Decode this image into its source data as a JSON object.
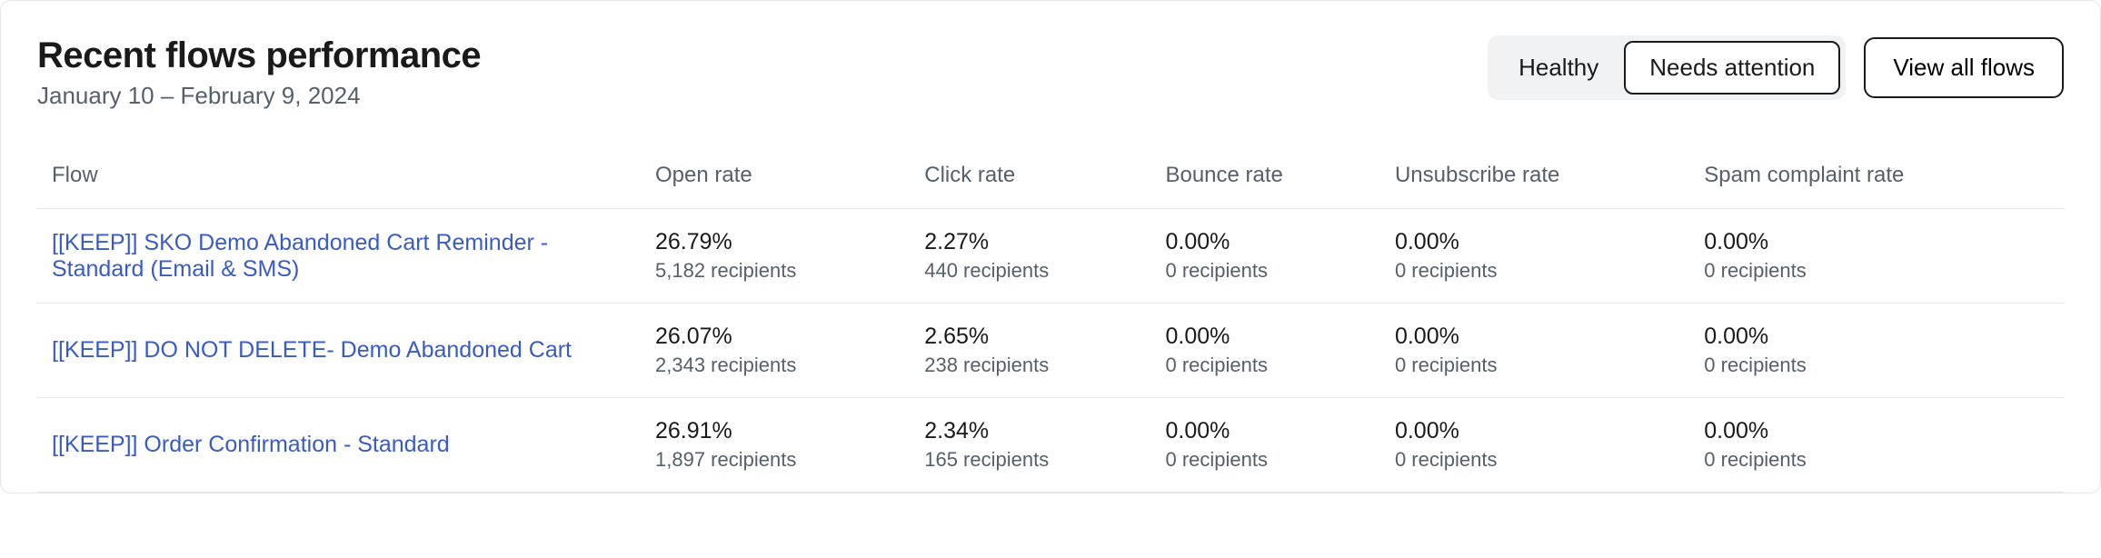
{
  "header": {
    "title": "Recent flows performance",
    "date_range": "January 10 – February 9, 2024",
    "seg_healthy": "Healthy",
    "seg_needs_attention": "Needs attention",
    "view_all": "View all flows"
  },
  "columns": {
    "flow": "Flow",
    "open": "Open rate",
    "click": "Click rate",
    "bounce": "Bounce rate",
    "unsub": "Unsubscribe rate",
    "spam": "Spam complaint rate"
  },
  "rows": [
    {
      "name": "[[KEEP]] SKO Demo Abandoned Cart Reminder - Standard (Email & SMS)",
      "open": {
        "value": "26.79%",
        "sub": "5,182 recipients"
      },
      "click": {
        "value": "2.27%",
        "sub": "440 recipients"
      },
      "bounce": {
        "value": "0.00%",
        "sub": "0 recipients"
      },
      "unsub": {
        "value": "0.00%",
        "sub": "0 recipients"
      },
      "spam": {
        "value": "0.00%",
        "sub": "0 recipients"
      }
    },
    {
      "name": "[[KEEP]] DO NOT DELETE- Demo Abandoned Cart",
      "open": {
        "value": "26.07%",
        "sub": "2,343 recipients"
      },
      "click": {
        "value": "2.65%",
        "sub": "238 recipients"
      },
      "bounce": {
        "value": "0.00%",
        "sub": "0 recipients"
      },
      "unsub": {
        "value": "0.00%",
        "sub": "0 recipients"
      },
      "spam": {
        "value": "0.00%",
        "sub": "0 recipients"
      }
    },
    {
      "name": "[[KEEP]] Order Confirmation - Standard",
      "open": {
        "value": "26.91%",
        "sub": "1,897 recipients"
      },
      "click": {
        "value": "2.34%",
        "sub": "165 recipients"
      },
      "bounce": {
        "value": "0.00%",
        "sub": "0 recipients"
      },
      "unsub": {
        "value": "0.00%",
        "sub": "0 recipients"
      },
      "spam": {
        "value": "0.00%",
        "sub": "0 recipients"
      }
    }
  ],
  "colors": {
    "link": "#3a5bbf",
    "muted": "#57606a",
    "border": "#e6e6e6",
    "seg_bg": "#f1f2f4"
  }
}
